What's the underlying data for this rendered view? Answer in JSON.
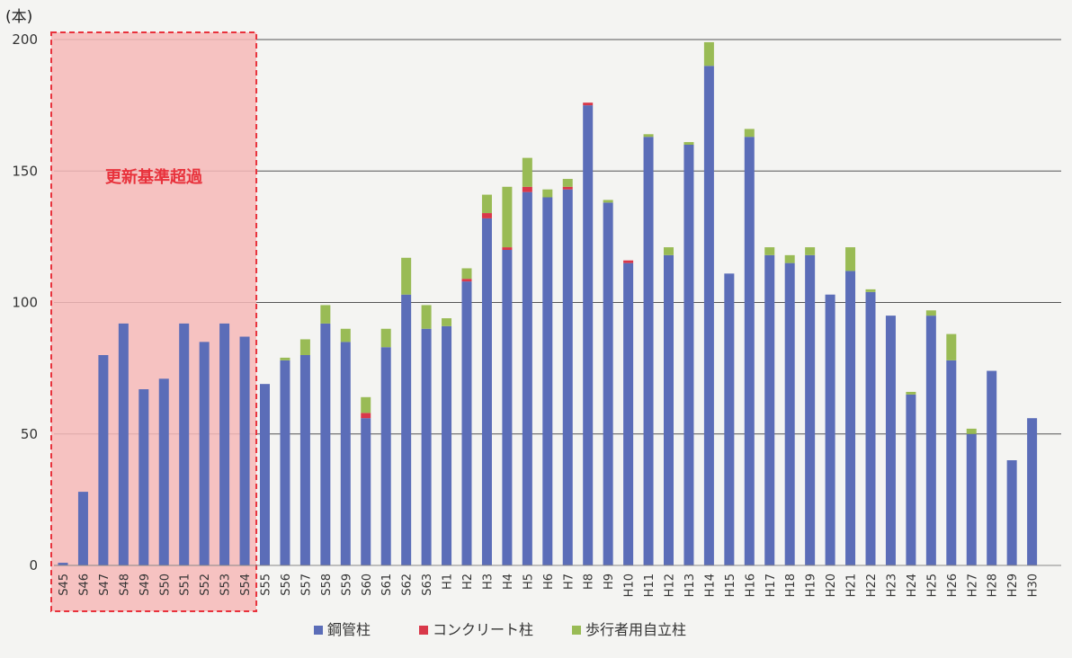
{
  "chart_data": {
    "type": "bar",
    "stacked": true,
    "y_unit": "(本)",
    "ylim": [
      0,
      200
    ],
    "yticks": [
      0,
      50,
      100,
      150,
      200
    ],
    "grid": true,
    "legend_position": "bottom",
    "categories": [
      "S45",
      "S46",
      "S47",
      "S48",
      "S49",
      "S50",
      "S51",
      "S52",
      "S53",
      "S54",
      "S55",
      "S56",
      "S57",
      "S58",
      "S59",
      "S60",
      "S61",
      "S62",
      "S63",
      "H1",
      "H2",
      "H3",
      "H4",
      "H5",
      "H6",
      "H7",
      "H8",
      "H9",
      "H10",
      "H11",
      "H12",
      "H13",
      "H14",
      "H15",
      "H16",
      "H17",
      "H18",
      "H19",
      "H20",
      "H21",
      "H22",
      "H23",
      "H24",
      "H25",
      "H26",
      "H27",
      "H28",
      "H29",
      "H30"
    ],
    "series": [
      {
        "name": "鋼管柱",
        "color": "#5b6db8",
        "values": [
          1,
          28,
          80,
          92,
          67,
          71,
          92,
          85,
          92,
          87,
          69,
          78,
          80,
          92,
          85,
          56,
          83,
          103,
          90,
          91,
          108,
          132,
          120,
          142,
          140,
          143,
          175,
          138,
          115,
          163,
          118,
          160,
          190,
          111,
          163,
          118,
          115,
          118,
          103,
          112,
          104,
          95,
          65,
          95,
          78,
          50,
          74,
          40,
          56
        ]
      },
      {
        "name": "コンクリート柱",
        "color": "#d9384a",
        "values": [
          0,
          0,
          0,
          0,
          0,
          0,
          0,
          0,
          0,
          0,
          0,
          0,
          0,
          0,
          0,
          2,
          0,
          0,
          0,
          0,
          1,
          2,
          1,
          2,
          0,
          1,
          1,
          0,
          1,
          0,
          0,
          0,
          0,
          0,
          0,
          0,
          0,
          0,
          0,
          0,
          0,
          0,
          0,
          0,
          0,
          0,
          0,
          0,
          0
        ]
      },
      {
        "name": "歩行者用自立柱",
        "color": "#99bb55",
        "values": [
          0,
          0,
          0,
          0,
          0,
          0,
          0,
          0,
          0,
          0,
          0,
          1,
          6,
          7,
          5,
          6,
          7,
          14,
          9,
          3,
          4,
          7,
          23,
          11,
          3,
          3,
          0,
          1,
          0,
          1,
          3,
          1,
          9,
          0,
          3,
          3,
          3,
          3,
          0,
          9,
          1,
          0,
          1,
          2,
          10,
          2,
          0,
          0,
          0
        ]
      }
    ],
    "annotation": {
      "text": "更新基準超過",
      "range": [
        "S45",
        "S54"
      ],
      "color": "#e8323c",
      "fill": "#f6b8b8"
    }
  }
}
